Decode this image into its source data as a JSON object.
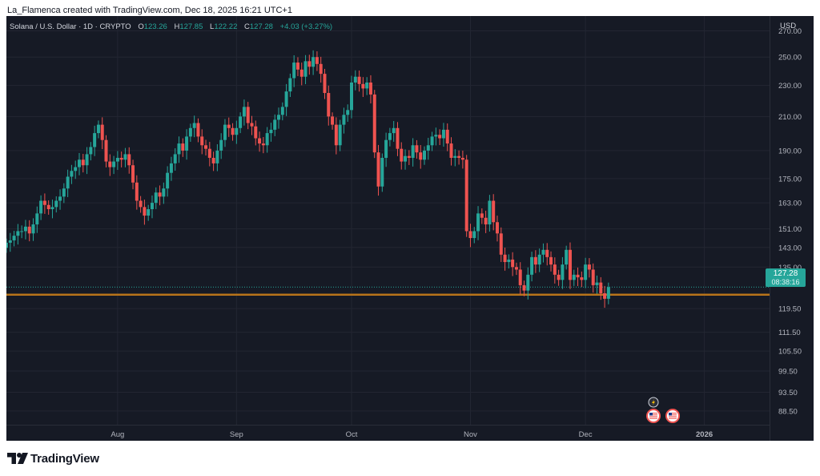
{
  "caption": "La_Flamenca created with TradingView.com, Dec 18, 2025 16:21 UTC+1",
  "legend": {
    "symbol": "Solana / U.S. Dollar · 1D · CRYPTO",
    "o_label": "O",
    "o": "123.26",
    "h_label": "H",
    "h": "127.85",
    "l_label": "L",
    "l": "122.22",
    "c_label": "C",
    "c": "127.28",
    "change": "+4.03 (+3.27%)"
  },
  "price_scale": {
    "currency": "USD",
    "ticks": [
      "270.00",
      "250.00",
      "230.00",
      "210.00",
      "190.00",
      "175.00",
      "163.00",
      "151.00",
      "143.00",
      "135.00",
      "119.50",
      "111.50",
      "105.50",
      "99.50",
      "93.50",
      "88.50"
    ]
  },
  "last_price": {
    "price": "127.28",
    "countdown": "08:38:16"
  },
  "time_scale": {
    "ticks": [
      "Aug",
      "Sep",
      "Oct",
      "Nov",
      "Dec",
      "2026"
    ]
  },
  "colors": {
    "background": "#161a25",
    "up": "#26a69a",
    "down": "#ef5350",
    "support_line": "#b8741a",
    "grid": "#232632"
  },
  "icons": [
    "lightning-event-icon",
    "us-flag-event-icon",
    "us-flag-event-icon"
  ],
  "footer": {
    "brand": "TradingView"
  },
  "chart_data": {
    "type": "candlestick",
    "title": "Solana / U.S. Dollar · 1D · CRYPTO",
    "y_scale": "log",
    "y_unit": "USD",
    "ylim": [
      85,
      282
    ],
    "xlim": [
      "2025-07-03",
      "2026-01-18"
    ],
    "support_level": 124.5,
    "last_value": 127.28,
    "grid": true,
    "x_ticks": [
      [
        "2025-08-01",
        "Aug"
      ],
      [
        "2025-09-01",
        "Sep"
      ],
      [
        "2025-10-01",
        "Oct"
      ],
      [
        "2025-11-01",
        "Nov"
      ],
      [
        "2025-12-01",
        "Dec"
      ],
      [
        "2026-01-01",
        "2026"
      ]
    ],
    "start_date": "2025-07-03",
    "close": [
      145,
      146,
      148,
      150,
      150,
      152,
      149,
      153,
      158,
      164,
      162,
      160,
      161,
      164,
      166,
      170,
      176,
      179,
      181,
      185,
      182,
      188,
      192,
      200,
      205,
      196,
      184,
      181,
      184,
      186,
      185,
      188,
      182,
      173,
      164,
      161,
      157,
      160,
      163,
      168,
      166,
      170,
      178,
      183,
      188,
      194,
      190,
      198,
      203,
      206,
      198,
      193,
      191,
      186,
      183,
      190,
      196,
      205,
      203,
      199,
      203,
      210,
      216,
      206,
      204,
      197,
      194,
      193,
      200,
      202,
      208,
      211,
      216,
      226,
      235,
      246,
      241,
      236,
      247,
      243,
      250,
      245,
      238,
      225,
      210,
      205,
      193,
      205,
      211,
      214,
      232,
      236,
      231,
      228,
      232,
      224,
      189,
      171,
      186,
      196,
      200,
      203,
      191,
      184,
      187,
      186,
      193,
      189,
      185,
      190,
      193,
      198,
      199,
      197,
      202,
      194,
      186,
      187,
      186,
      185,
      150,
      147,
      150,
      158,
      156,
      153,
      164,
      154,
      149,
      140,
      137,
      138,
      135,
      134,
      128,
      126,
      132,
      139,
      136,
      140,
      142,
      139,
      136,
      132,
      130,
      136,
      142,
      130,
      132,
      131,
      130,
      136,
      134,
      128,
      129,
      125,
      123,
      127.28
    ]
  }
}
